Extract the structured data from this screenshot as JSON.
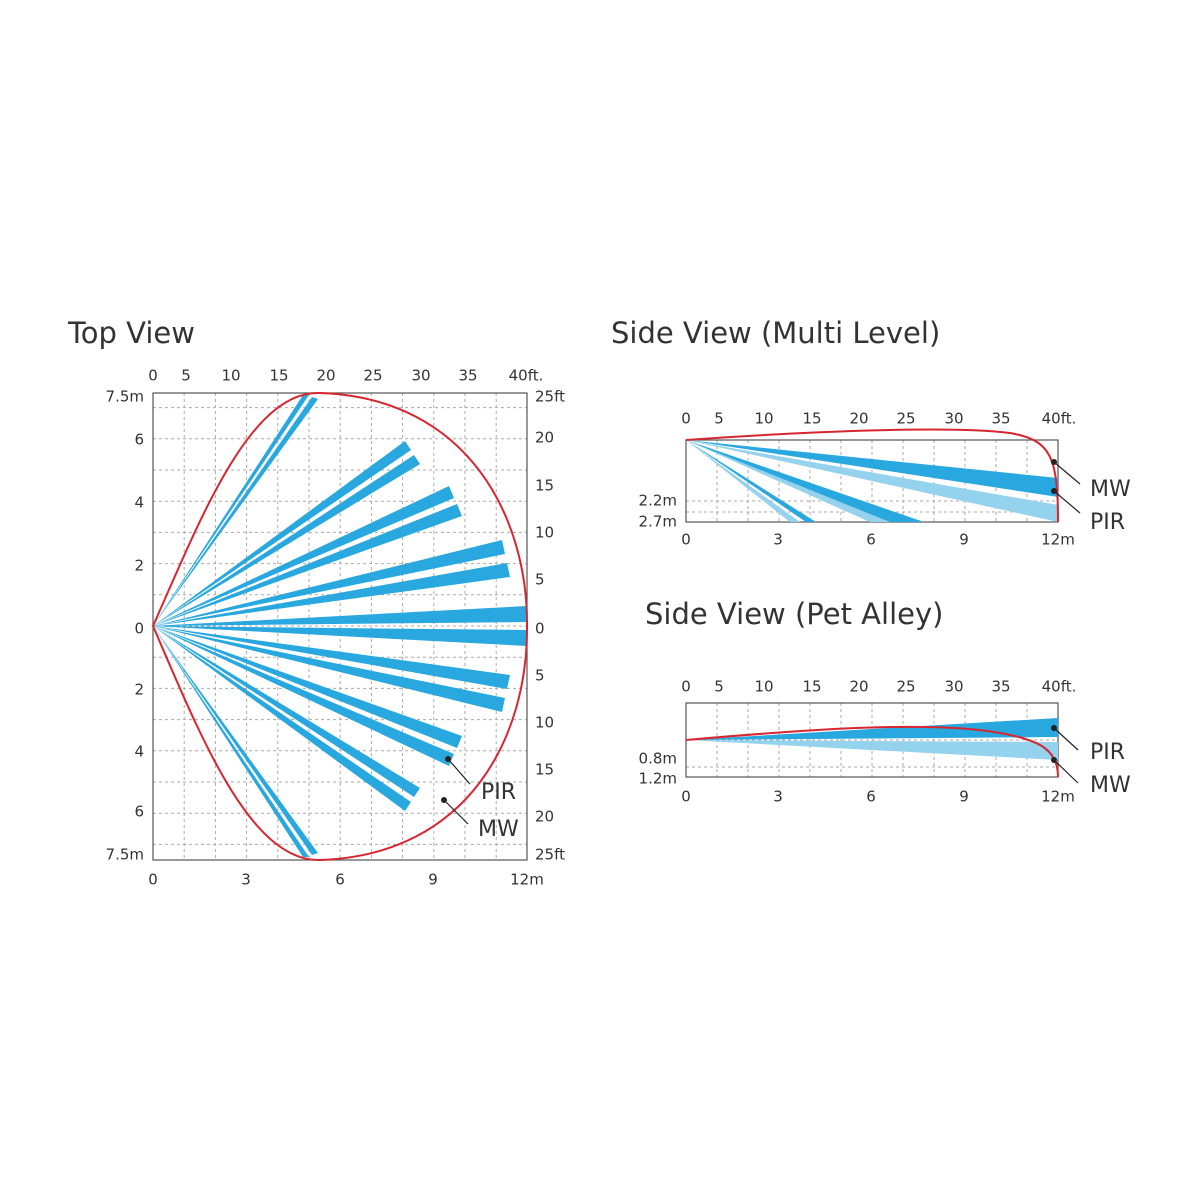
{
  "top_view": {
    "title": "Top View",
    "x_top_labels": [
      "0",
      "5",
      "10",
      "15",
      "20",
      "25",
      "30",
      "35",
      "40ft."
    ],
    "x_bottom_labels": [
      "0",
      "3",
      "6",
      "9",
      "12m"
    ],
    "y_left_labels": [
      "7.5m",
      "6",
      "4",
      "2",
      "0",
      "2",
      "4",
      "6",
      "7.5m"
    ],
    "y_right_labels": [
      "25ft",
      "20",
      "15",
      "10",
      "5",
      "0",
      "5",
      "10",
      "15",
      "20",
      "25ft"
    ],
    "pir_label": "PIR",
    "mw_label": "MW"
  },
  "side_view_multi": {
    "title": "Side View (Multi Level)",
    "x_top_labels": [
      "0",
      "5",
      "10",
      "15",
      "20",
      "25",
      "30",
      "35",
      "40ft."
    ],
    "x_bottom_labels": [
      "0",
      "3",
      "6",
      "9",
      "12m"
    ],
    "y_left_labels": [
      "2.2m",
      "2.7m"
    ],
    "mw_label": "MW",
    "pir_label": "PIR"
  },
  "side_view_pet": {
    "title": "Side View (Pet Alley)",
    "x_top_labels": [
      "0",
      "5",
      "10",
      "15",
      "20",
      "25",
      "30",
      "35",
      "40ft."
    ],
    "x_bottom_labels": [
      "0",
      "3",
      "6",
      "9",
      "12m"
    ],
    "y_left_labels": [
      "0.8m",
      "1.2m"
    ],
    "pir_label": "PIR",
    "mw_label": "MW"
  }
}
